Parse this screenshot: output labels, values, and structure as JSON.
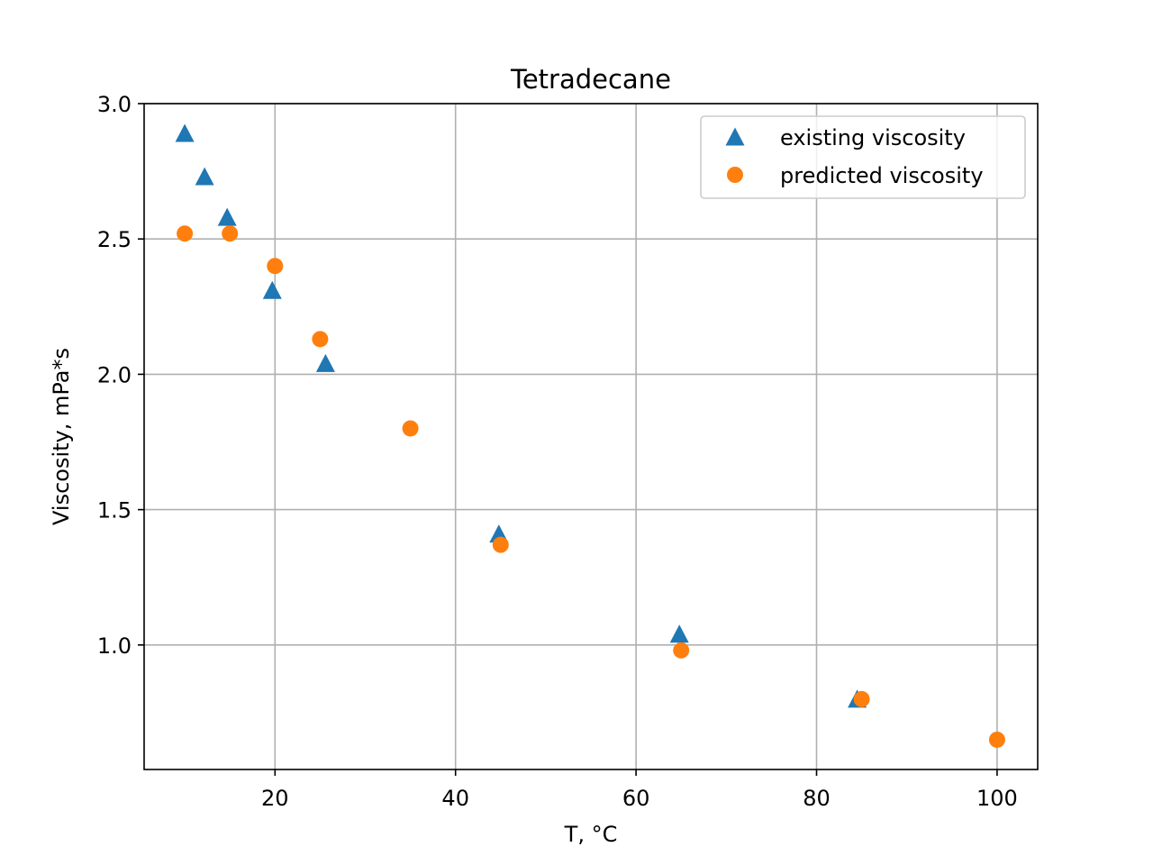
{
  "chart_data": {
    "type": "scatter",
    "title": "Tetradecane",
    "xlabel": "T, °C",
    "ylabel": "Viscosity, mPa*s",
    "xlim": [
      5.5,
      104.5
    ],
    "ylim": [
      0.54,
      3.0
    ],
    "xticks": [
      20,
      40,
      60,
      80,
      100
    ],
    "xtick_labels": [
      "20",
      "40",
      "60",
      "80",
      "100"
    ],
    "yticks": [
      1.0,
      1.5,
      2.0,
      2.5,
      3.0
    ],
    "ytick_labels": [
      "1.0",
      "1.5",
      "2.0",
      "2.5",
      "3.0"
    ],
    "grid": true,
    "legend_position": "top-right",
    "series": [
      {
        "name": "existing viscosity",
        "marker": "triangle",
        "color": "#1f77b4",
        "x": [
          10.0,
          12.2,
          14.7,
          19.7,
          25.6,
          44.8,
          64.8,
          84.5
        ],
        "y": [
          2.89,
          2.73,
          2.58,
          2.31,
          2.04,
          1.41,
          1.04,
          0.8
        ]
      },
      {
        "name": "predicted viscosity",
        "marker": "circle",
        "color": "#ff7f0e",
        "x": [
          10.0,
          15.0,
          20.0,
          25.0,
          35.0,
          45.0,
          65.0,
          85.0,
          100.0
        ],
        "y": [
          2.52,
          2.52,
          2.4,
          2.13,
          1.8,
          1.37,
          0.98,
          0.8,
          0.65
        ]
      }
    ]
  }
}
